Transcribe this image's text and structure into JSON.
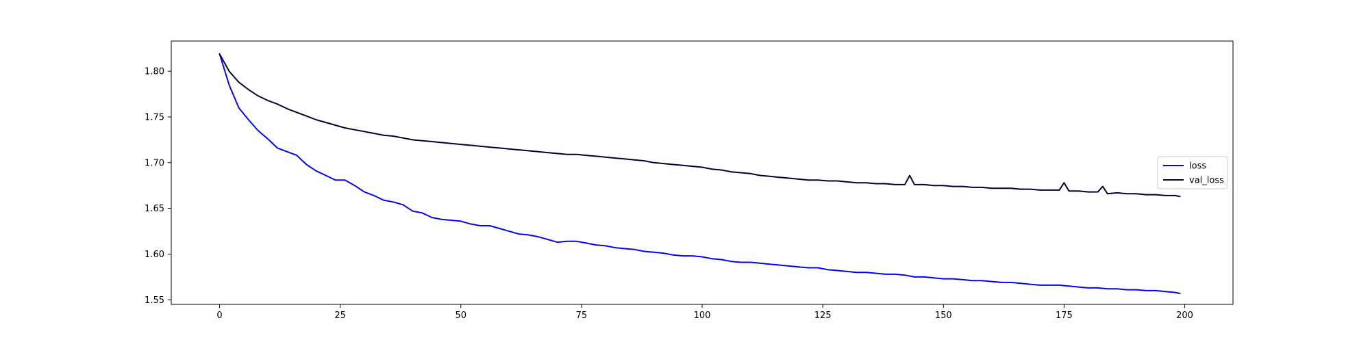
{
  "chart_data": {
    "type": "line",
    "title": "",
    "xlabel": "",
    "ylabel": "",
    "xlim": [
      -10,
      210
    ],
    "ylim": [
      1.545,
      1.833
    ],
    "x_ticks": [
      0,
      25,
      50,
      75,
      100,
      125,
      150,
      175,
      200
    ],
    "x_tick_labels": [
      "0",
      "25",
      "50",
      "75",
      "100",
      "125",
      "150",
      "175",
      "200"
    ],
    "y_ticks": [
      1.55,
      1.6,
      1.65,
      1.7,
      1.75,
      1.8
    ],
    "y_tick_labels": [
      "1.55",
      "1.60",
      "1.65",
      "1.70",
      "1.75",
      "1.80"
    ],
    "grid": false,
    "legend_position": "center-right",
    "series": [
      {
        "name": "loss",
        "color": "#0000ff",
        "x": [
          0,
          2,
          4,
          6,
          8,
          10,
          12,
          14,
          16,
          18,
          20,
          22,
          24,
          26,
          28,
          30,
          32,
          34,
          36,
          38,
          40,
          42,
          44,
          46,
          48,
          50,
          52,
          54,
          56,
          58,
          60,
          62,
          64,
          66,
          68,
          70,
          72,
          74,
          76,
          78,
          80,
          82,
          84,
          86,
          88,
          90,
          92,
          94,
          96,
          98,
          100,
          102,
          104,
          106,
          108,
          110,
          112,
          114,
          116,
          118,
          120,
          122,
          124,
          126,
          128,
          130,
          132,
          134,
          136,
          138,
          140,
          142,
          144,
          146,
          148,
          150,
          152,
          154,
          156,
          158,
          160,
          162,
          164,
          166,
          168,
          170,
          172,
          174,
          176,
          178,
          180,
          182,
          184,
          186,
          188,
          190,
          192,
          194,
          196,
          198,
          199
        ],
        "values": [
          1.819,
          1.785,
          1.76,
          1.747,
          1.735,
          1.726,
          1.716,
          1.712,
          1.708,
          1.698,
          1.691,
          1.686,
          1.681,
          1.681,
          1.675,
          1.668,
          1.664,
          1.659,
          1.657,
          1.654,
          1.647,
          1.645,
          1.64,
          1.638,
          1.637,
          1.636,
          1.633,
          1.631,
          1.631,
          1.628,
          1.625,
          1.622,
          1.621,
          1.619,
          1.616,
          1.613,
          1.614,
          1.614,
          1.612,
          1.61,
          1.609,
          1.607,
          1.606,
          1.605,
          1.603,
          1.602,
          1.601,
          1.599,
          1.598,
          1.598,
          1.597,
          1.595,
          1.594,
          1.592,
          1.591,
          1.591,
          1.59,
          1.589,
          1.588,
          1.587,
          1.586,
          1.585,
          1.585,
          1.583,
          1.582,
          1.581,
          1.58,
          1.58,
          1.579,
          1.578,
          1.578,
          1.577,
          1.575,
          1.575,
          1.574,
          1.573,
          1.573,
          1.572,
          1.571,
          1.571,
          1.57,
          1.569,
          1.569,
          1.568,
          1.567,
          1.566,
          1.566,
          1.566,
          1.565,
          1.564,
          1.563,
          1.563,
          1.562,
          1.562,
          1.561,
          1.561,
          1.56,
          1.56,
          1.559,
          1.558,
          1.557
        ]
      },
      {
        "name": "val_loss",
        "color": "#000033",
        "x": [
          0,
          2,
          4,
          6,
          8,
          10,
          12,
          14,
          16,
          18,
          20,
          22,
          24,
          26,
          28,
          30,
          32,
          34,
          36,
          38,
          40,
          42,
          44,
          46,
          48,
          50,
          52,
          54,
          56,
          58,
          60,
          62,
          64,
          66,
          68,
          70,
          72,
          74,
          76,
          78,
          80,
          82,
          84,
          86,
          88,
          90,
          92,
          94,
          96,
          98,
          100,
          102,
          104,
          106,
          108,
          110,
          112,
          114,
          116,
          118,
          120,
          122,
          124,
          126,
          128,
          130,
          132,
          134,
          136,
          138,
          140,
          142,
          143,
          144,
          146,
          148,
          150,
          152,
          154,
          156,
          158,
          160,
          162,
          164,
          166,
          168,
          170,
          172,
          174,
          175,
          176,
          178,
          180,
          182,
          183,
          184,
          186,
          188,
          190,
          192,
          194,
          196,
          198,
          199
        ],
        "values": [
          1.819,
          1.8,
          1.788,
          1.78,
          1.773,
          1.768,
          1.764,
          1.759,
          1.755,
          1.751,
          1.747,
          1.744,
          1.741,
          1.738,
          1.736,
          1.734,
          1.732,
          1.73,
          1.729,
          1.727,
          1.725,
          1.724,
          1.723,
          1.722,
          1.721,
          1.72,
          1.719,
          1.718,
          1.717,
          1.716,
          1.715,
          1.714,
          1.713,
          1.712,
          1.711,
          1.71,
          1.709,
          1.709,
          1.708,
          1.707,
          1.706,
          1.705,
          1.704,
          1.703,
          1.702,
          1.7,
          1.699,
          1.698,
          1.697,
          1.696,
          1.695,
          1.693,
          1.692,
          1.69,
          1.689,
          1.688,
          1.686,
          1.685,
          1.684,
          1.683,
          1.682,
          1.681,
          1.681,
          1.68,
          1.68,
          1.679,
          1.678,
          1.678,
          1.677,
          1.677,
          1.676,
          1.676,
          1.686,
          1.676,
          1.676,
          1.675,
          1.675,
          1.674,
          1.674,
          1.673,
          1.673,
          1.672,
          1.672,
          1.672,
          1.671,
          1.671,
          1.67,
          1.67,
          1.67,
          1.678,
          1.669,
          1.669,
          1.668,
          1.668,
          1.674,
          1.666,
          1.667,
          1.666,
          1.666,
          1.665,
          1.665,
          1.664,
          1.664,
          1.663
        ]
      }
    ]
  }
}
